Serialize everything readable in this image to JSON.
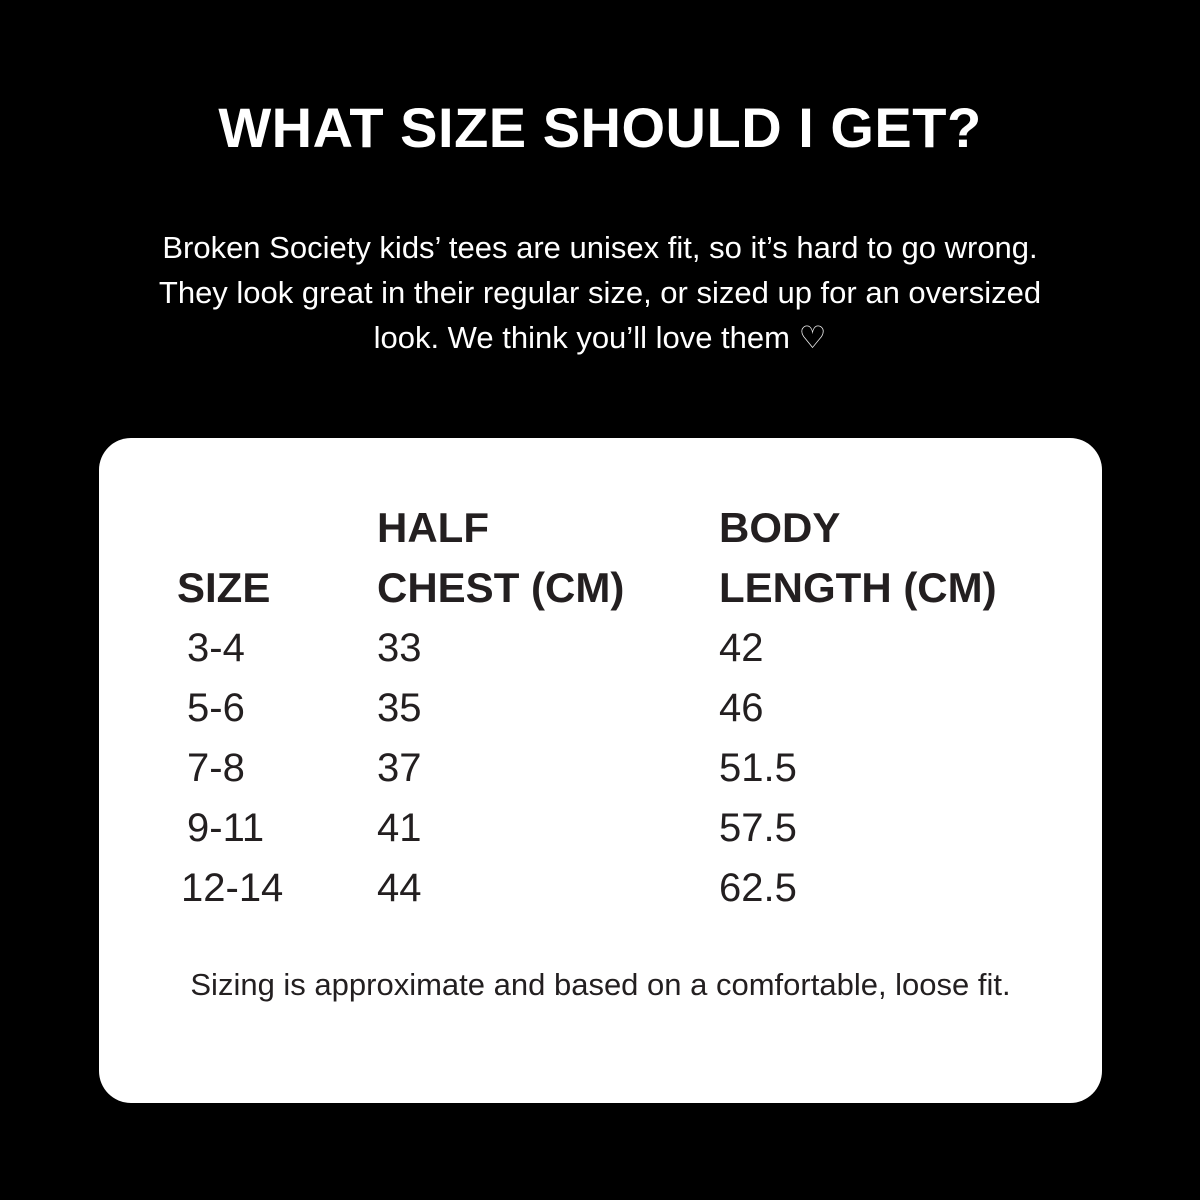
{
  "title": "WHAT SIZE SHOULD I GET?",
  "intro": "Broken Society kids’ tees are unisex fit, so it’s hard to go wrong. They look great in their regular size, or sized up for an oversized look. We think you’ll love them",
  "intro_icon": "white-heart-icon",
  "table": {
    "headers": {
      "size": "SIZE",
      "chest_1": "HALF",
      "chest_2": "CHEST (CM)",
      "length_1": "BODY",
      "length_2": "LENGTH (CM)"
    },
    "rows": [
      {
        "size": "3-4",
        "chest": "33",
        "length": "42"
      },
      {
        "size": "5-6",
        "chest": "35",
        "length": "46"
      },
      {
        "size": "7-8",
        "chest": "37",
        "length": "51.5"
      },
      {
        "size": "9-11",
        "chest": "41",
        "length": "57.5"
      },
      {
        "size": "12-14",
        "chest": "44",
        "length": "62.5"
      }
    ]
  },
  "note": "Sizing is approximate and based on a comfortable, loose fit."
}
